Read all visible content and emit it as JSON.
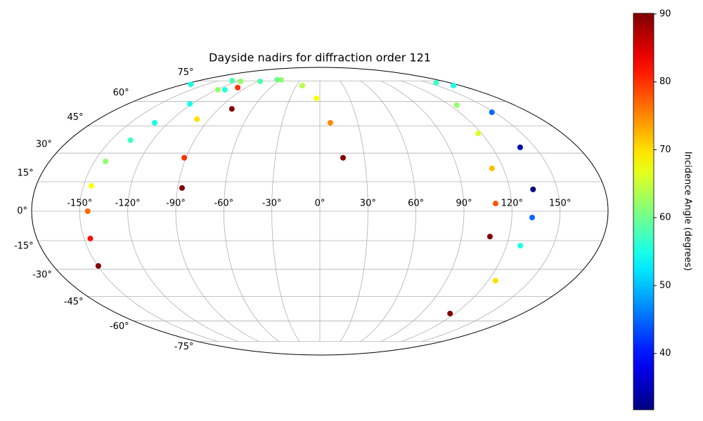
{
  "chart_data": {
    "type": "scatter",
    "projection": "mollweide",
    "title": "Dayside nadirs for diffraction order 121",
    "grid": true,
    "xlim": [
      -180,
      180
    ],
    "ylim": [
      -90,
      90
    ],
    "xticks": [
      {
        "value": -150,
        "label": "-150°"
      },
      {
        "value": -120,
        "label": "-120°"
      },
      {
        "value": -90,
        "label": "-90°"
      },
      {
        "value": -60,
        "label": "-60°"
      },
      {
        "value": -30,
        "label": "-30°"
      },
      {
        "value": 0,
        "label": "0°"
      },
      {
        "value": 30,
        "label": "30°"
      },
      {
        "value": 60,
        "label": "60°"
      },
      {
        "value": 90,
        "label": "90°"
      },
      {
        "value": 120,
        "label": "120°"
      },
      {
        "value": 150,
        "label": "150°"
      }
    ],
    "yticks": [
      {
        "value": -75,
        "label": "-75°"
      },
      {
        "value": -60,
        "label": "-60°"
      },
      {
        "value": -45,
        "label": "-45°"
      },
      {
        "value": -30,
        "label": "-30°"
      },
      {
        "value": -15,
        "label": "-15°"
      },
      {
        "value": 0,
        "label": "0°"
      },
      {
        "value": 15,
        "label": "15°"
      },
      {
        "value": 30,
        "label": "30°"
      },
      {
        "value": 45,
        "label": "45°"
      },
      {
        "value": 60,
        "label": "60°"
      },
      {
        "value": 75,
        "label": "75°"
      }
    ],
    "cmap": "jet",
    "clim": [
      31.7,
      90.1
    ],
    "cticks": [
      40,
      50,
      60,
      70,
      80,
      90
    ],
    "clabel": "Incidence Angle (degrees)",
    "series": [
      {
        "x": [
          -149.6,
          -146,
          -145,
          -145,
          -142.7,
          -136,
          -130.8,
          -122,
          -110.6,
          -86.6,
          -59
        ],
        "y": [
          -28.2,
          -13.9,
          0,
          12.9,
          25.6,
          37.0,
          46.9,
          58.5,
          68.1,
          74.6,
          75.8
        ],
        "c": [
          90,
          82,
          77,
          68,
          62,
          57,
          55,
          55,
          56,
          58,
          62
        ]
      },
      {
        "x": [
          -65.9,
          -22.5,
          -3.5,
          8.3,
          15.6
        ],
        "y": [
          76,
          71.2,
          62.1,
          46.9,
          27.5
        ],
        "c": [
          60,
          64,
          68,
          75,
          90
        ]
      },
      {
        "x": [
          -87.2,
          -91.2,
          -99.8,
          -118.7,
          -130.7,
          -171
        ],
        "y": [
          11.8,
          27.5,
          49.0,
          68.1,
          75.2,
          72.2
        ],
        "c": [
          90,
          80,
          70,
          62,
          58,
          55
        ]
      },
      {
        "x": [
          -78.2,
          -100.3,
          -115
        ],
        "y": [
          55.3,
          69.7,
          74.6
        ],
        "c": [
          90,
          80,
          62
        ]
      },
      {
        "x": [
          161,
          126.6,
          117.5,
          112.6,
          109.9,
          107.9
        ],
        "y": [
          73.4,
          57.7,
          40.8,
          21.9,
          3.9,
          -12.9
        ],
        "c": [
          57,
          62,
          66,
          72,
          78,
          90
        ]
      },
      {
        "x": [
          171,
          148,
          139.6,
          134.7,
          132.7,
          128.9,
          125.3,
          115.7
        ],
        "y": [
          71.2,
          53.2,
          33.1,
          11.1,
          -3.2,
          -17.6,
          -36.2,
          -55.3
        ],
        "c": [
          55,
          45,
          35,
          32,
          45,
          55,
          70,
          90
        ]
      }
    ]
  }
}
